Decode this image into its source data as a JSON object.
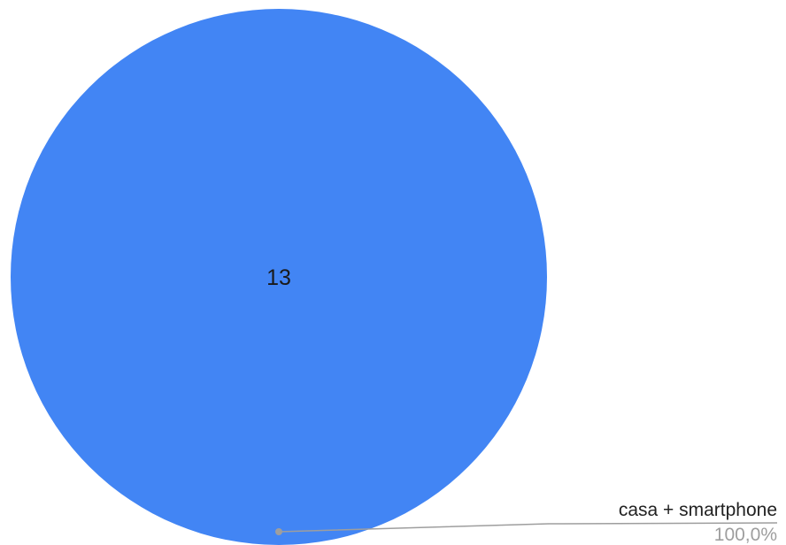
{
  "chart_data": {
    "type": "pie",
    "title": "",
    "slices": [
      {
        "label": "casa + smartphone",
        "value": 13,
        "percent_label": "100,0%",
        "color": "#4285f4"
      }
    ],
    "legend": "leader-lines"
  },
  "colors": {
    "leader_line": "#9e9e9e",
    "leader_dot": "#9e9e9e"
  }
}
